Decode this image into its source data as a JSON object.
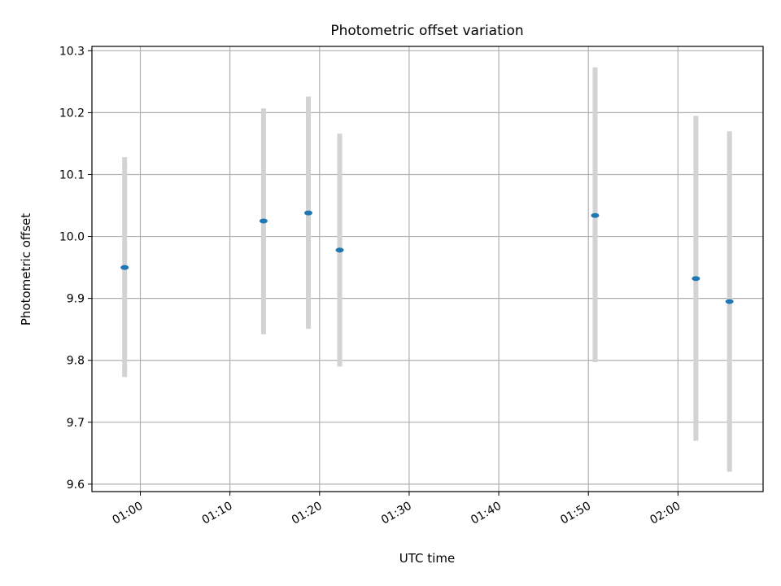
{
  "chart_data": {
    "type": "scatter",
    "title": "Photometric offset variation",
    "xlabel": "UTC time",
    "ylabel": "Photometric offset",
    "x_unit": "minutes since 00:00 UTC",
    "xlim": [
      54.6,
      129.5
    ],
    "ylim": [
      9.588,
      10.307
    ],
    "xticks": [
      {
        "value": 60,
        "label": "01:00"
      },
      {
        "value": 70,
        "label": "01:10"
      },
      {
        "value": 80,
        "label": "01:20"
      },
      {
        "value": 90,
        "label": "01:30"
      },
      {
        "value": 100,
        "label": "01:40"
      },
      {
        "value": 110,
        "label": "01:50"
      },
      {
        "value": 120,
        "label": "02:00"
      }
    ],
    "yticks": [
      {
        "value": 9.6,
        "label": "9.6"
      },
      {
        "value": 9.7,
        "label": "9.7"
      },
      {
        "value": 9.8,
        "label": "9.8"
      },
      {
        "value": 9.9,
        "label": "9.9"
      },
      {
        "value": 10.0,
        "label": "10.0"
      },
      {
        "value": 10.1,
        "label": "10.1"
      },
      {
        "value": 10.2,
        "label": "10.2"
      },
      {
        "value": 10.3,
        "label": "10.3"
      }
    ],
    "grid": true,
    "points": [
      {
        "time": "00:58:15",
        "x": 58.25,
        "y": 9.95,
        "y_low": 9.773,
        "y_high": 10.128
      },
      {
        "time": "01:13:45",
        "x": 73.75,
        "y": 10.025,
        "y_low": 9.842,
        "y_high": 10.207
      },
      {
        "time": "01:18:45",
        "x": 78.75,
        "y": 10.038,
        "y_low": 9.851,
        "y_high": 10.226
      },
      {
        "time": "01:22:15",
        "x": 82.25,
        "y": 9.978,
        "y_low": 9.79,
        "y_high": 10.166
      },
      {
        "time": "01:50:45",
        "x": 110.75,
        "y": 10.034,
        "y_low": 9.797,
        "y_high": 10.273
      },
      {
        "time": "02:02:00",
        "x": 122.0,
        "y": 9.932,
        "y_low": 9.67,
        "y_high": 10.195
      },
      {
        "time": "02:05:45",
        "x": 125.75,
        "y": 9.895,
        "y_low": 9.62,
        "y_high": 10.17
      }
    ],
    "colors": {
      "point": "#1f77b4",
      "errorbar": "#d3d3d3",
      "grid": "#b0b0b0"
    }
  }
}
